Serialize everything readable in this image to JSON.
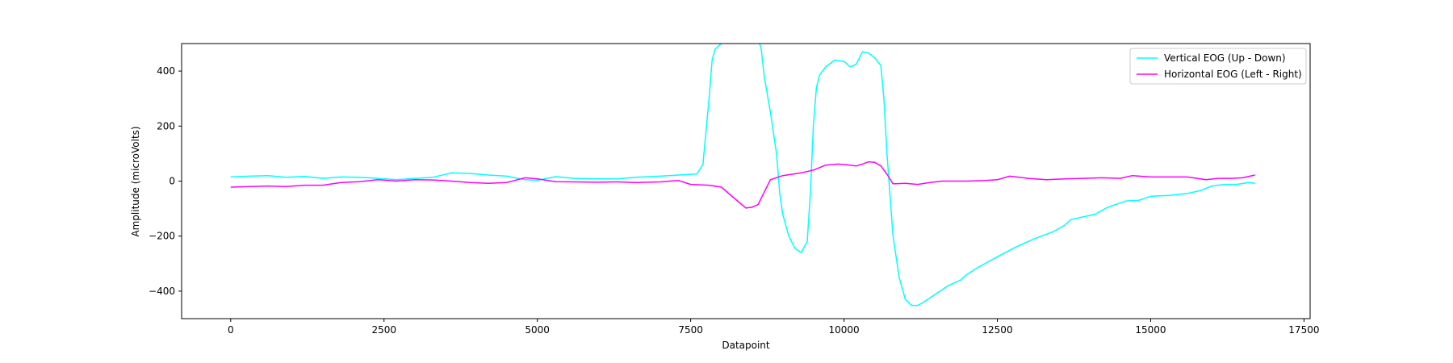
{
  "chart_data": {
    "type": "line",
    "title": "",
    "xlabel": "Datapoint",
    "ylabel": "Amplitude (microVolts)",
    "xlim": [
      -800,
      17600
    ],
    "ylim": [
      -500,
      500
    ],
    "x_ticks": [
      0,
      2500,
      5000,
      7500,
      10000,
      12500,
      15000,
      17500
    ],
    "x_tick_labels": [
      "0",
      "2500",
      "5000",
      "7500",
      "10000",
      "12500",
      "15000",
      "17500"
    ],
    "y_ticks": [
      -400,
      -200,
      0,
      200,
      400
    ],
    "y_tick_labels": [
      "−400",
      "−200",
      "0",
      "200",
      "400"
    ],
    "grid": false,
    "legend_position": "top-right",
    "series": [
      {
        "name": "Vertical EOG (Up - Down)",
        "color": "#00ffff",
        "points": [
          [
            0,
            15
          ],
          [
            300,
            18
          ],
          [
            600,
            20
          ],
          [
            900,
            14
          ],
          [
            1200,
            17
          ],
          [
            1500,
            10
          ],
          [
            1800,
            15
          ],
          [
            2100,
            14
          ],
          [
            2400,
            10
          ],
          [
            2700,
            5
          ],
          [
            3000,
            10
          ],
          [
            3300,
            14
          ],
          [
            3600,
            30
          ],
          [
            3900,
            28
          ],
          [
            4200,
            22
          ],
          [
            4500,
            18
          ],
          [
            4800,
            5
          ],
          [
            5000,
            3
          ],
          [
            5300,
            16
          ],
          [
            5600,
            10
          ],
          [
            6000,
            8
          ],
          [
            6300,
            8
          ],
          [
            6600,
            14
          ],
          [
            7000,
            18
          ],
          [
            7300,
            22
          ],
          [
            7600,
            26
          ],
          [
            7700,
            60
          ],
          [
            7800,
            300
          ],
          [
            7850,
            440
          ],
          [
            7900,
            480
          ],
          [
            8000,
            500
          ],
          [
            8300,
            520
          ],
          [
            8600,
            520
          ],
          [
            8650,
            480
          ],
          [
            8700,
            380
          ],
          [
            8800,
            250
          ],
          [
            8900,
            100
          ],
          [
            8950,
            -40
          ],
          [
            9000,
            -120
          ],
          [
            9100,
            -200
          ],
          [
            9200,
            -245
          ],
          [
            9300,
            -260
          ],
          [
            9400,
            -220
          ],
          [
            9450,
            -50
          ],
          [
            9500,
            200
          ],
          [
            9550,
            340
          ],
          [
            9600,
            385
          ],
          [
            9700,
            415
          ],
          [
            9850,
            440
          ],
          [
            10000,
            435
          ],
          [
            10100,
            415
          ],
          [
            10200,
            425
          ],
          [
            10300,
            470
          ],
          [
            10400,
            465
          ],
          [
            10500,
            448
          ],
          [
            10600,
            420
          ],
          [
            10650,
            300
          ],
          [
            10700,
            100
          ],
          [
            10750,
            -50
          ],
          [
            10800,
            -200
          ],
          [
            10900,
            -350
          ],
          [
            11000,
            -430
          ],
          [
            11100,
            -452
          ],
          [
            11200,
            -452
          ],
          [
            11300,
            -440
          ],
          [
            11500,
            -410
          ],
          [
            11700,
            -380
          ],
          [
            11900,
            -360
          ],
          [
            12000,
            -340
          ],
          [
            12200,
            -312
          ],
          [
            12500,
            -275
          ],
          [
            12800,
            -240
          ],
          [
            13100,
            -210
          ],
          [
            13400,
            -185
          ],
          [
            13600,
            -160
          ],
          [
            13700,
            -140
          ],
          [
            14000,
            -125
          ],
          [
            14100,
            -120
          ],
          [
            14300,
            -95
          ],
          [
            14600,
            -72
          ],
          [
            14800,
            -70
          ],
          [
            15000,
            -55
          ],
          [
            15300,
            -52
          ],
          [
            15600,
            -45
          ],
          [
            15800,
            -35
          ],
          [
            16000,
            -18
          ],
          [
            16200,
            -12
          ],
          [
            16400,
            -12
          ],
          [
            16600,
            -5
          ],
          [
            16700,
            -8
          ]
        ]
      },
      {
        "name": "Horizontal EOG (Left - Right)",
        "color": "#ff00ff",
        "points": [
          [
            0,
            -22
          ],
          [
            300,
            -20
          ],
          [
            600,
            -18
          ],
          [
            900,
            -20
          ],
          [
            1200,
            -15
          ],
          [
            1500,
            -15
          ],
          [
            1800,
            -5
          ],
          [
            2100,
            -2
          ],
          [
            2400,
            5
          ],
          [
            2700,
            0
          ],
          [
            3000,
            5
          ],
          [
            3300,
            4
          ],
          [
            3600,
            0
          ],
          [
            3900,
            -5
          ],
          [
            4200,
            -8
          ],
          [
            4500,
            -5
          ],
          [
            4800,
            12
          ],
          [
            5000,
            8
          ],
          [
            5300,
            -2
          ],
          [
            5600,
            -3
          ],
          [
            6000,
            -4
          ],
          [
            6300,
            -3
          ],
          [
            6600,
            -5
          ],
          [
            7000,
            -3
          ],
          [
            7300,
            2
          ],
          [
            7500,
            -12
          ],
          [
            7800,
            -15
          ],
          [
            8000,
            -22
          ],
          [
            8200,
            -60
          ],
          [
            8400,
            -98
          ],
          [
            8500,
            -95
          ],
          [
            8600,
            -85
          ],
          [
            8700,
            -40
          ],
          [
            8800,
            5
          ],
          [
            9000,
            20
          ],
          [
            9300,
            30
          ],
          [
            9500,
            40
          ],
          [
            9700,
            58
          ],
          [
            9900,
            62
          ],
          [
            10100,
            58
          ],
          [
            10200,
            55
          ],
          [
            10300,
            62
          ],
          [
            10400,
            70
          ],
          [
            10500,
            68
          ],
          [
            10600,
            55
          ],
          [
            10700,
            25
          ],
          [
            10800,
            -10
          ],
          [
            11000,
            -8
          ],
          [
            11200,
            -12
          ],
          [
            11400,
            -5
          ],
          [
            11600,
            0
          ],
          [
            12000,
            0
          ],
          [
            12300,
            2
          ],
          [
            12500,
            5
          ],
          [
            12700,
            18
          ],
          [
            13000,
            10
          ],
          [
            13300,
            5
          ],
          [
            13600,
            8
          ],
          [
            13900,
            10
          ],
          [
            14200,
            12
          ],
          [
            14500,
            10
          ],
          [
            14700,
            20
          ],
          [
            15000,
            15
          ],
          [
            15300,
            15
          ],
          [
            15600,
            15
          ],
          [
            15900,
            5
          ],
          [
            16100,
            10
          ],
          [
            16300,
            10
          ],
          [
            16500,
            12
          ],
          [
            16700,
            22
          ]
        ]
      }
    ]
  }
}
